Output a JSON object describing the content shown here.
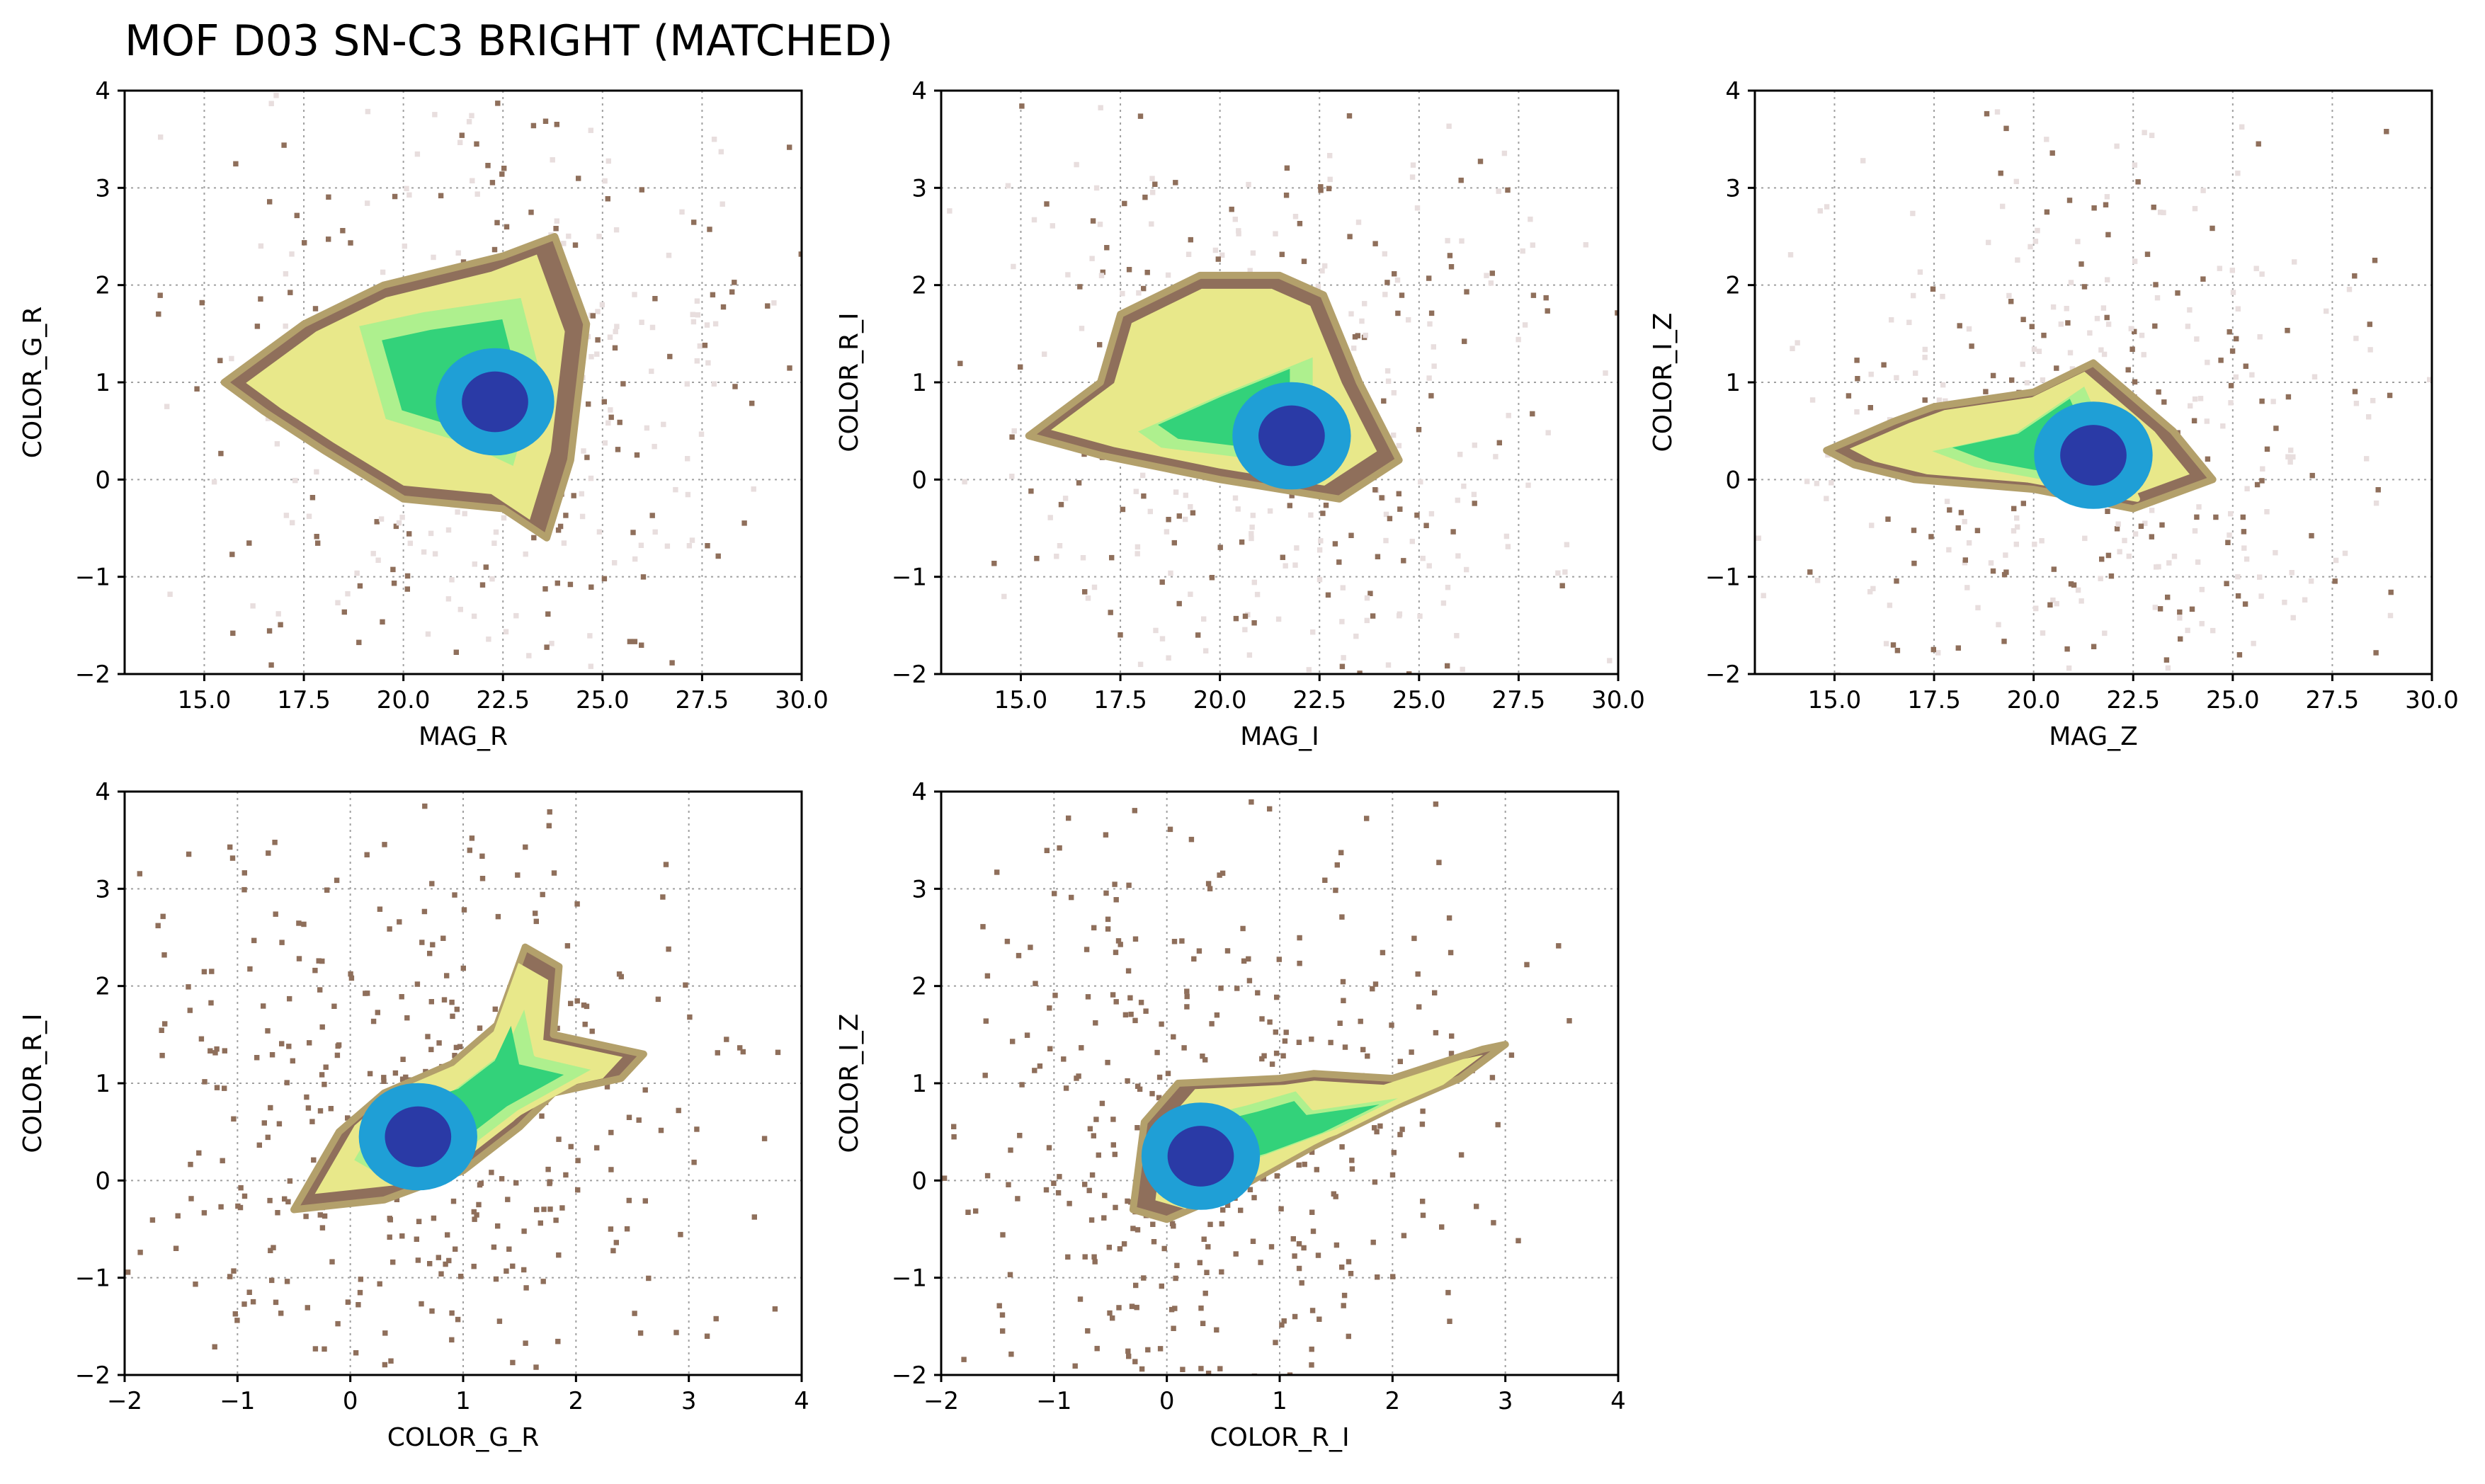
{
  "figure": {
    "title": "MOF D03 SN-C3 BRIGHT (MATCHED)"
  },
  "colormap": {
    "name": "terrain_r",
    "stops": [
      "#e8dede",
      "#c9b8b4",
      "#8f6f5b",
      "#b3a06b",
      "#e8e88a",
      "#aef08e",
      "#33d27a",
      "#1f9fd6",
      "#2a3aa6",
      "#28369b"
    ]
  },
  "chart_data": [
    {
      "type": "heatmap",
      "xlabel": "MAG_R",
      "ylabel": "COLOR_G_R",
      "xlim": [
        13,
        30
      ],
      "ylim": [
        -2,
        4
      ],
      "xticks": [
        15.0,
        17.5,
        20.0,
        22.5,
        25.0,
        27.5,
        30.0
      ],
      "xtick_labels": [
        "15.0",
        "17.5",
        "20.0",
        "22.5",
        "25.0",
        "27.5",
        "30.0"
      ],
      "yticks": [
        -2,
        -1,
        0,
        1,
        2,
        3,
        4
      ],
      "ytick_labels": [
        "−2",
        "−1",
        "0",
        "1",
        "2",
        "3",
        "4"
      ],
      "grid": true,
      "density_outline": [
        [
          15.5,
          1.0
        ],
        [
          17.5,
          1.6
        ],
        [
          19.5,
          2.0
        ],
        [
          22.5,
          2.3
        ],
        [
          23.8,
          2.5
        ],
        [
          24.6,
          1.6
        ],
        [
          24.2,
          0.2
        ],
        [
          23.6,
          -0.6
        ],
        [
          22.5,
          -0.3
        ],
        [
          20.0,
          -0.2
        ],
        [
          18.0,
          0.3
        ],
        [
          16.5,
          0.7
        ]
      ],
      "density_core": [
        [
          18.8,
          1.6
        ],
        [
          20.5,
          1.75
        ],
        [
          23.0,
          1.9
        ],
        [
          23.5,
          1.1
        ],
        [
          22.8,
          0.1
        ],
        [
          21.5,
          0.35
        ],
        [
          19.5,
          0.6
        ]
      ],
      "density_peak": [
        22.3,
        0.8
      ]
    },
    {
      "type": "heatmap",
      "xlabel": "MAG_I",
      "ylabel": "COLOR_R_I",
      "xlim": [
        13,
        30
      ],
      "ylim": [
        -2,
        4
      ],
      "xticks": [
        15.0,
        17.5,
        20.0,
        22.5,
        25.0,
        27.5,
        30.0
      ],
      "xtick_labels": [
        "15.0",
        "17.5",
        "20.0",
        "22.5",
        "25.0",
        "27.5",
        "30.0"
      ],
      "yticks": [
        -2,
        -1,
        0,
        1,
        2,
        3,
        4
      ],
      "ytick_labels": [
        "−2",
        "−1",
        "0",
        "1",
        "2",
        "3",
        "4"
      ],
      "grid": true,
      "density_outline": [
        [
          15.2,
          0.45
        ],
        [
          17.0,
          1.0
        ],
        [
          17.5,
          1.7
        ],
        [
          19.5,
          2.1
        ],
        [
          21.5,
          2.1
        ],
        [
          22.6,
          1.9
        ],
        [
          23.5,
          1.0
        ],
        [
          24.5,
          0.2
        ],
        [
          23.0,
          -0.2
        ],
        [
          20.0,
          0.0
        ],
        [
          17.0,
          0.25
        ]
      ],
      "density_core": [
        [
          17.8,
          0.5
        ],
        [
          20.0,
          0.9
        ],
        [
          22.4,
          1.3
        ],
        [
          22.4,
          0.15
        ],
        [
          20.5,
          0.2
        ],
        [
          18.5,
          0.3
        ]
      ],
      "density_peak": [
        21.8,
        0.45
      ]
    },
    {
      "type": "heatmap",
      "xlabel": "MAG_Z",
      "ylabel": "COLOR_I_Z",
      "xlim": [
        13,
        30
      ],
      "ylim": [
        -2,
        4
      ],
      "xticks": [
        15.0,
        17.5,
        20.0,
        22.5,
        25.0,
        27.5,
        30.0
      ],
      "xtick_labels": [
        "15.0",
        "17.5",
        "20.0",
        "22.5",
        "25.0",
        "27.5",
        "30.0"
      ],
      "yticks": [
        -2,
        -1,
        0,
        1,
        2,
        3,
        4
      ],
      "ytick_labels": [
        "−2",
        "−1",
        "0",
        "1",
        "2",
        "3",
        "4"
      ],
      "grid": true,
      "density_outline": [
        [
          14.8,
          0.3
        ],
        [
          16.5,
          0.6
        ],
        [
          17.5,
          0.75
        ],
        [
          20.0,
          0.9
        ],
        [
          21.5,
          1.2
        ],
        [
          23.5,
          0.5
        ],
        [
          24.5,
          0.0
        ],
        [
          22.5,
          -0.3
        ],
        [
          20.0,
          -0.1
        ],
        [
          17.0,
          0.0
        ],
        [
          15.5,
          0.15
        ]
      ],
      "density_core": [
        [
          17.2,
          0.3
        ],
        [
          19.5,
          0.5
        ],
        [
          21.3,
          1.0
        ],
        [
          22.6,
          -0.2
        ],
        [
          20.5,
          -0.05
        ],
        [
          18.5,
          0.1
        ]
      ],
      "density_peak": [
        21.5,
        0.25
      ]
    },
    {
      "type": "heatmap",
      "xlabel": "COLOR_G_R",
      "ylabel": "COLOR_R_I",
      "xlim": [
        -2,
        4
      ],
      "ylim": [
        -2,
        4
      ],
      "xticks": [
        -2,
        -1,
        0,
        1,
        2,
        3,
        4
      ],
      "xtick_labels": [
        "−2",
        "−1",
        "0",
        "1",
        "2",
        "3",
        "4"
      ],
      "yticks": [
        -2,
        -1,
        0,
        1,
        2,
        3,
        4
      ],
      "ytick_labels": [
        "−2",
        "−1",
        "0",
        "1",
        "2",
        "3",
        "4"
      ],
      "grid": true,
      "density_outline": [
        [
          -0.5,
          -0.3
        ],
        [
          -0.1,
          0.5
        ],
        [
          0.3,
          0.9
        ],
        [
          0.9,
          1.2
        ],
        [
          1.3,
          1.6
        ],
        [
          1.55,
          2.4
        ],
        [
          1.85,
          2.2
        ],
        [
          1.8,
          1.5
        ],
        [
          2.6,
          1.3
        ],
        [
          2.4,
          1.05
        ],
        [
          1.8,
          0.9
        ],
        [
          1.5,
          0.55
        ],
        [
          1.0,
          0.1
        ],
        [
          0.3,
          -0.2
        ]
      ],
      "density_core": [
        [
          0.0,
          0.2
        ],
        [
          0.25,
          0.7
        ],
        [
          0.9,
          0.95
        ],
        [
          1.35,
          1.35
        ],
        [
          1.55,
          1.85
        ],
        [
          1.65,
          1.3
        ],
        [
          2.2,
          1.15
        ],
        [
          1.5,
          0.7
        ],
        [
          1.05,
          0.3
        ],
        [
          0.3,
          0.0
        ]
      ],
      "density_peak": [
        0.6,
        0.45
      ]
    },
    {
      "type": "heatmap",
      "xlabel": "COLOR_R_I",
      "ylabel": "COLOR_I_Z",
      "xlim": [
        -2,
        4
      ],
      "ylim": [
        -2,
        4
      ],
      "xticks": [
        -2,
        -1,
        0,
        1,
        2,
        3,
        4
      ],
      "xtick_labels": [
        "−2",
        "−1",
        "0",
        "1",
        "2",
        "3",
        "4"
      ],
      "yticks": [
        -2,
        -1,
        0,
        1,
        2,
        3,
        4
      ],
      "ytick_labels": [
        "−2",
        "−1",
        "0",
        "1",
        "2",
        "3",
        "4"
      ],
      "grid": true,
      "density_outline": [
        [
          -0.3,
          -0.3
        ],
        [
          -0.2,
          0.6
        ],
        [
          0.1,
          1.0
        ],
        [
          1.0,
          1.05
        ],
        [
          1.3,
          1.1
        ],
        [
          2.0,
          1.05
        ],
        [
          2.8,
          1.35
        ],
        [
          3.0,
          1.4
        ],
        [
          2.6,
          1.05
        ],
        [
          2.0,
          0.75
        ],
        [
          1.3,
          0.35
        ],
        [
          0.6,
          -0.1
        ],
        [
          0.0,
          -0.4
        ]
      ],
      "density_core": [
        [
          -0.05,
          0.05
        ],
        [
          0.0,
          0.6
        ],
        [
          0.7,
          0.8
        ],
        [
          1.15,
          0.95
        ],
        [
          1.3,
          0.75
        ],
        [
          2.2,
          0.9
        ],
        [
          1.5,
          0.5
        ],
        [
          0.8,
          0.2
        ],
        [
          0.2,
          0.0
        ]
      ],
      "density_peak": [
        0.3,
        0.25
      ]
    }
  ]
}
